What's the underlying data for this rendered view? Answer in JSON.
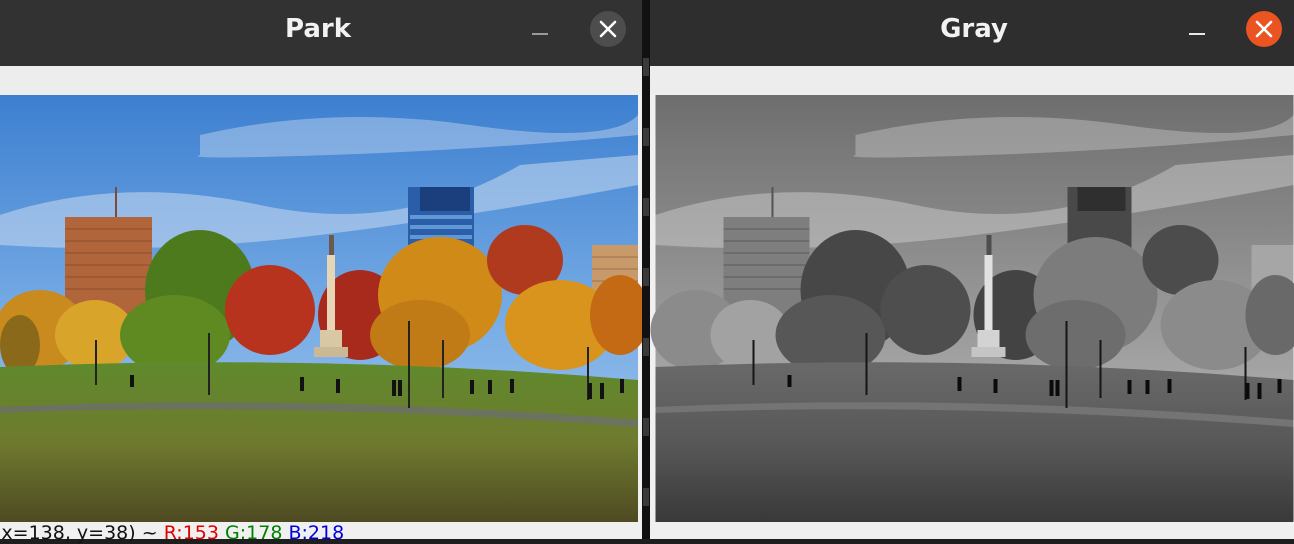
{
  "windows": [
    {
      "id": "park",
      "title": "Park",
      "status": {
        "coords": "(x=138, y=38) ~",
        "r": "R:153",
        "g": "G:178",
        "b": "B:218"
      }
    },
    {
      "id": "gray",
      "title": "Gray"
    }
  ],
  "icons": {
    "minimize": "minimize-icon",
    "close": "close-icon"
  },
  "colors": {
    "titlebar": "#333232",
    "close_active": "#e95420",
    "close_inactive": "#4d4d4d",
    "status_r": "#e00000",
    "status_g": "#008000",
    "status_b": "#0000e0"
  }
}
